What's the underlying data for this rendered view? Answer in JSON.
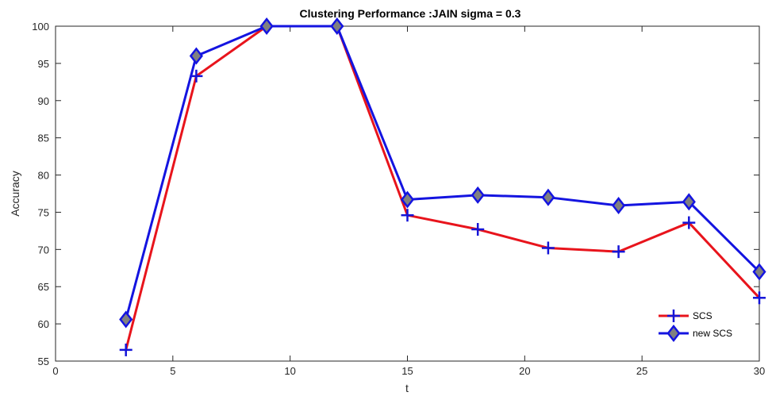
{
  "chart_data": {
    "type": "line",
    "title": "Clustering Performance :JAIN sigma = 0.3",
    "xlabel": "t",
    "ylabel": "Accuracy",
    "xlim": [
      0,
      30
    ],
    "ylim": [
      55,
      100
    ],
    "xticks": [
      0,
      5,
      10,
      15,
      20,
      25,
      30
    ],
    "yticks": [
      55,
      60,
      65,
      70,
      75,
      80,
      85,
      90,
      95,
      100
    ],
    "grid": false,
    "legend_position": "bottom-right",
    "x": [
      3,
      6,
      9,
      12,
      15,
      18,
      21,
      24,
      27,
      30
    ],
    "series": [
      {
        "name": "SCS",
        "color": "#e8141c",
        "marker": "plus",
        "marker_color": "#1414d8",
        "values": [
          56.5,
          93.3,
          100,
          100,
          74.6,
          72.7,
          70.2,
          69.7,
          73.6,
          63.5
        ]
      },
      {
        "name": "new SCS",
        "color": "#1414e0",
        "marker": "diamond",
        "marker_color": "#808080",
        "values": [
          60.6,
          96.0,
          100,
          100,
          76.7,
          77.3,
          77.0,
          75.9,
          76.4,
          67.0
        ]
      }
    ]
  }
}
